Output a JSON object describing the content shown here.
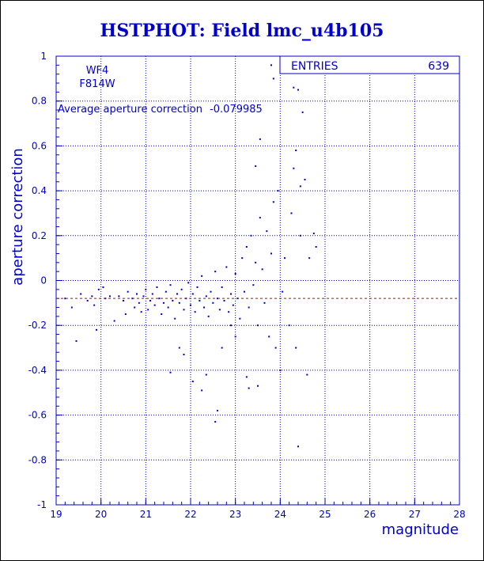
{
  "chart_data": {
    "type": "scatter",
    "title": "HSTPHOT: Field lmc_u4b105",
    "xlabel": "magnitude",
    "ylabel": "aperture correction",
    "xlim": [
      19,
      28
    ],
    "ylim": [
      -1,
      1
    ],
    "x_ticks": [
      "19",
      "20",
      "21",
      "22",
      "23",
      "24",
      "25",
      "26",
      "27",
      "28"
    ],
    "y_ticks": [
      "-1",
      "-0.8",
      "-0.6",
      "-0.4",
      "-0.2",
      "0",
      "0.2",
      "0.4",
      "0.6",
      "0.8",
      "1"
    ],
    "grid": true,
    "annotations": {
      "chip": "WF4",
      "filter": "F814W",
      "average_label": "Average aperture correction",
      "average_value_text": "-0.079985"
    },
    "average_line_y": -0.079985,
    "stats": {
      "label": "ENTRIES",
      "value": "639"
    },
    "colors": {
      "text": "#0000cc",
      "points": "#0000cc",
      "grid": "#0000cc",
      "average_line": "#cc0000"
    },
    "points": [
      [
        19.2,
        -0.08
      ],
      [
        19.35,
        -0.12
      ],
      [
        19.45,
        -0.27
      ],
      [
        19.55,
        -0.06
      ],
      [
        19.7,
        -0.09
      ],
      [
        19.8,
        -0.07
      ],
      [
        19.85,
        -0.11
      ],
      [
        19.9,
        -0.22
      ],
      [
        19.95,
        -0.04
      ],
      [
        20.05,
        -0.03
      ],
      [
        20.1,
        -0.08
      ],
      [
        20.2,
        -0.07
      ],
      [
        20.3,
        -0.18
      ],
      [
        20.4,
        -0.07
      ],
      [
        20.5,
        -0.09
      ],
      [
        20.55,
        -0.15
      ],
      [
        20.6,
        -0.05
      ],
      [
        20.7,
        -0.08
      ],
      [
        20.75,
        -0.12
      ],
      [
        20.8,
        -0.06
      ],
      [
        20.85,
        -0.1
      ],
      [
        20.9,
        -0.14
      ],
      [
        20.95,
        -0.07
      ],
      [
        21.0,
        -0.04
      ],
      [
        21.05,
        -0.13
      ],
      [
        21.1,
        -0.09
      ],
      [
        21.15,
        -0.06
      ],
      [
        21.2,
        -0.11
      ],
      [
        21.25,
        -0.03
      ],
      [
        21.3,
        -0.08
      ],
      [
        21.35,
        -0.15
      ],
      [
        21.4,
        -0.1
      ],
      [
        21.45,
        -0.05
      ],
      [
        21.5,
        -0.12
      ],
      [
        21.55,
        -0.02
      ],
      [
        21.6,
        -0.09
      ],
      [
        21.65,
        -0.17
      ],
      [
        21.7,
        -0.06
      ],
      [
        21.75,
        -0.1
      ],
      [
        21.8,
        -0.04
      ],
      [
        21.85,
        -0.13
      ],
      [
        21.9,
        -0.08
      ],
      [
        21.95,
        -0.01
      ],
      [
        22.0,
        -0.11
      ],
      [
        22.05,
        -0.06
      ],
      [
        22.1,
        -0.14
      ],
      [
        22.15,
        -0.03
      ],
      [
        22.2,
        -0.09
      ],
      [
        22.25,
        0.02
      ],
      [
        22.3,
        -0.12
      ],
      [
        22.35,
        -0.07
      ],
      [
        22.4,
        -0.16
      ],
      [
        22.45,
        -0.05
      ],
      [
        22.5,
        -0.1
      ],
      [
        22.55,
        0.04
      ],
      [
        22.6,
        -0.08
      ],
      [
        22.65,
        -0.13
      ],
      [
        22.7,
        -0.03
      ],
      [
        22.75,
        -0.09
      ],
      [
        22.8,
        0.06
      ],
      [
        22.85,
        -0.14
      ],
      [
        22.9,
        -0.06
      ],
      [
        22.95,
        -0.11
      ],
      [
        23.0,
        0.03
      ],
      [
        23.05,
        -0.08
      ],
      [
        23.1,
        -0.17
      ],
      [
        23.15,
        0.1
      ],
      [
        23.2,
        -0.05
      ],
      [
        23.25,
        0.15
      ],
      [
        23.3,
        -0.12
      ],
      [
        23.35,
        0.2
      ],
      [
        23.4,
        -0.02
      ],
      [
        23.45,
        0.08
      ],
      [
        23.5,
        -0.2
      ],
      [
        23.55,
        0.28
      ],
      [
        23.6,
        0.05
      ],
      [
        23.65,
        -0.1
      ],
      [
        23.7,
        0.22
      ],
      [
        23.75,
        -0.25
      ],
      [
        23.8,
        0.12
      ],
      [
        23.85,
        0.35
      ],
      [
        23.9,
        -0.3
      ],
      [
        23.95,
        0.4
      ],
      [
        24.0,
        -0.4
      ],
      [
        24.05,
        -0.05
      ],
      [
        24.1,
        0.1
      ],
      [
        24.2,
        -0.2
      ],
      [
        24.25,
        0.3
      ],
      [
        24.3,
        0.5
      ],
      [
        24.35,
        -0.3
      ],
      [
        24.4,
        0.85
      ],
      [
        24.45,
        0.2
      ],
      [
        24.5,
        0.75
      ],
      [
        24.55,
        0.45
      ],
      [
        24.6,
        -0.42
      ],
      [
        24.65,
        0.1
      ],
      [
        24.75,
        0.21
      ],
      [
        24.8,
        0.15
      ],
      [
        23.8,
        0.96
      ],
      [
        23.85,
        0.9
      ],
      [
        23.55,
        0.63
      ],
      [
        23.45,
        0.51
      ],
      [
        24.3,
        0.86
      ],
      [
        24.45,
        0.42
      ],
      [
        24.35,
        0.58
      ],
      [
        24.4,
        -0.74
      ],
      [
        22.6,
        -0.58
      ],
      [
        22.55,
        -0.63
      ],
      [
        21.85,
        -0.33
      ],
      [
        21.55,
        -0.41
      ],
      [
        23.25,
        -0.43
      ],
      [
        23.5,
        -0.47
      ],
      [
        23.3,
        -0.48
      ],
      [
        22.25,
        -0.49
      ],
      [
        22.35,
        -0.42
      ],
      [
        21.75,
        -0.3
      ],
      [
        22.05,
        -0.45
      ],
      [
        22.9,
        -0.2
      ],
      [
        23.0,
        -0.25
      ],
      [
        22.7,
        -0.3
      ]
    ]
  }
}
